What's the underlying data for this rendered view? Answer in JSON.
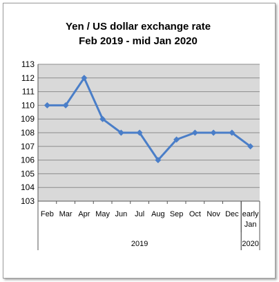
{
  "chart_data": {
    "type": "line",
    "title_line1": "Yen / US dollar exchange rate",
    "title_line2": "Feb 2019  - mid Jan 2020",
    "categories": [
      "Feb",
      "Mar",
      "Apr",
      "May",
      "Jun",
      "Jul",
      "Aug",
      "Sep",
      "Oct",
      "Nov",
      "Dec",
      "early Jan"
    ],
    "category_labels": [
      [
        "Feb"
      ],
      [
        "Mar"
      ],
      [
        "Apr"
      ],
      [
        "May"
      ],
      [
        "Jun"
      ],
      [
        "Jul"
      ],
      [
        "Aug"
      ],
      [
        "Sep"
      ],
      [
        "Oct"
      ],
      [
        "Nov"
      ],
      [
        "Dec"
      ],
      [
        "early",
        "Jan"
      ]
    ],
    "groups": [
      {
        "label": "2019",
        "from": 0,
        "to": 10
      },
      {
        "label": "2020",
        "from": 11,
        "to": 11
      }
    ],
    "values": [
      110,
      110,
      112,
      109,
      108,
      108,
      106,
      107.5,
      108,
      108,
      108,
      107
    ],
    "ylim": [
      103,
      113
    ],
    "yticks": [
      103,
      104,
      105,
      106,
      107,
      108,
      109,
      110,
      111,
      112,
      113
    ],
    "grid": true,
    "colors": {
      "line": "#4a7ec8",
      "plot_background": "#d9d9d9",
      "grid": "#8c8c8c"
    }
  }
}
